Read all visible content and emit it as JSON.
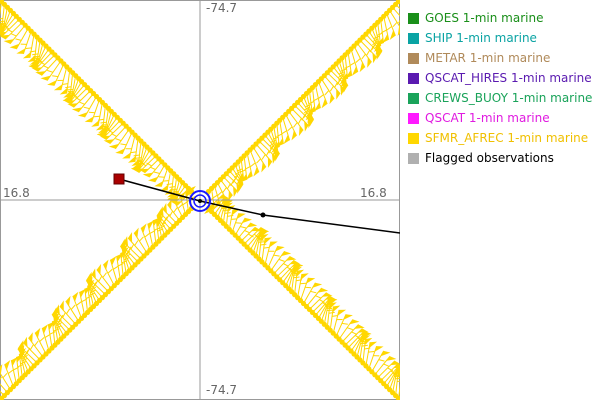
{
  "axes": {
    "top_label": "-74.7",
    "bottom_label": "-74.7",
    "left_label": "16.8",
    "right_label": "16.8"
  },
  "legend": {
    "items": [
      {
        "label": "GOES 1-min marine",
        "swatch": "#1a8f1a",
        "text_color": "#1a8f1a"
      },
      {
        "label": "SHIP 1-min marine",
        "swatch": "#0aa3a3",
        "text_color": "#0aa3a3"
      },
      {
        "label": "METAR 1-min marine",
        "swatch": "#b08a5a",
        "text_color": "#b08a5a"
      },
      {
        "label": "QSCAT_HIRES 1-min marine",
        "swatch": "#5a1ab0",
        "text_color": "#5a1ab0"
      },
      {
        "label": "CREWS_BUOY 1-min marine",
        "swatch": "#1aa35a",
        "text_color": "#1aa35a"
      },
      {
        "label": "QSCAT 1-min marine",
        "swatch": "#ff1aff",
        "text_color": "#e01ae0"
      },
      {
        "label": "SFMR_AFREC 1-min marine",
        "swatch": "#ffd700",
        "text_color": "#f0c000"
      },
      {
        "label": "Flagged observations",
        "swatch": "#b0b0b0",
        "text_color": "#000000"
      }
    ]
  },
  "colors": {
    "observations": "#ffd700",
    "track": "#000000",
    "storm_marker": "#1a1aff",
    "start_marker": "#aa0000",
    "axis_lines": "#999999"
  }
}
